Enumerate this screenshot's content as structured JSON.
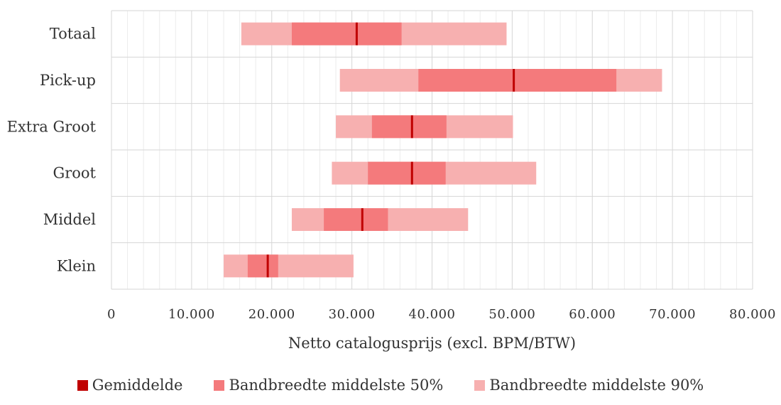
{
  "chart_data": {
    "type": "bar",
    "orientation": "horizontal-range",
    "categories": [
      "Totaal",
      "Pick-up",
      "Extra Groot",
      "Groot",
      "Middel",
      "Klein"
    ],
    "xlabel": "Netto catalogusprijs (excl. BPM/BTW)",
    "ylabel": "",
    "xlim": [
      0,
      80000
    ],
    "x_ticks": [
      0,
      10000,
      20000,
      30000,
      40000,
      50000,
      60000,
      70000,
      80000
    ],
    "x_tick_labels": [
      "0",
      "10.000",
      "20.000",
      "30.000",
      "40.000",
      "50.000",
      "60.000",
      "70.000",
      "80.000"
    ],
    "grid": true,
    "legend_position": "bottom",
    "series": [
      {
        "name": "Bandbreedte middelste 90%",
        "color": "#f7b0b0",
        "ranges": [
          [
            16200,
            49300
          ],
          [
            28500,
            68700
          ],
          [
            28000,
            50100
          ],
          [
            27500,
            53000
          ],
          [
            22500,
            44500
          ],
          [
            14000,
            30200
          ]
        ]
      },
      {
        "name": "Bandbreedte middelste 50%",
        "color": "#f47a7c",
        "ranges": [
          [
            22500,
            36200
          ],
          [
            38300,
            63000
          ],
          [
            32500,
            41800
          ],
          [
            32000,
            41700
          ],
          [
            26500,
            34500
          ],
          [
            17000,
            20800
          ]
        ]
      },
      {
        "name": "Gemiddelde",
        "color": "#c00000",
        "values": [
          30600,
          50200,
          37500,
          37500,
          31300,
          19500
        ]
      }
    ],
    "legend": [
      {
        "name": "Gemiddelde",
        "color": "#c00000"
      },
      {
        "name": "Bandbreedte middelste 50%",
        "color": "#f47a7c"
      },
      {
        "name": "Bandbreedte middelste 90%",
        "color": "#f7b0b0"
      }
    ]
  }
}
